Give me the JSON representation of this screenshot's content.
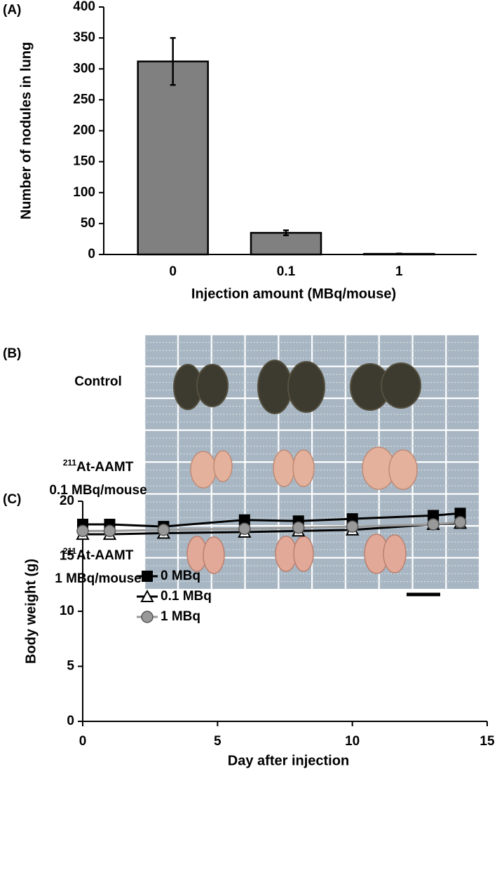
{
  "chart_data": [
    {
      "type": "bar",
      "panel_label": "(A)",
      "ylabel": "Number of nodules in lung",
      "xlabel": "Injection amount (MBq/mouse)",
      "categories": [
        "0",
        "0.1",
        "1"
      ],
      "values": [
        312,
        35,
        1
      ],
      "errors": [
        38,
        4,
        0.5
      ],
      "color": "#808080",
      "ylim": [
        0,
        400
      ],
      "yticks": [
        0,
        50,
        100,
        150,
        200,
        250,
        300,
        350,
        400
      ]
    },
    {
      "type": "line",
      "panel_label": "(C)",
      "ylabel": "Body weight (g)",
      "xlabel": "Day after injection",
      "x": [
        0,
        1,
        3,
        6,
        8,
        10,
        13,
        14
      ],
      "series": [
        {
          "name": "0 MBq",
          "color": "#000000",
          "marker": "square",
          "values": [
            17.9,
            17.9,
            17.7,
            18.3,
            18.2,
            18.4,
            18.7,
            18.9
          ]
        },
        {
          "name": "0.1 MBq",
          "color": "#000000",
          "marker": "triangle",
          "values": [
            17.0,
            17.0,
            17.1,
            17.2,
            17.3,
            17.4,
            17.9,
            18.0
          ]
        },
        {
          "name": "1 MBq",
          "color": "#999999",
          "marker": "circle",
          "values": [
            17.3,
            17.3,
            17.4,
            17.5,
            17.6,
            17.7,
            17.9,
            18.1
          ]
        }
      ],
      "xlim": [
        0,
        15
      ],
      "xticks": [
        0,
        5,
        10,
        15
      ],
      "ylim": [
        0,
        20
      ],
      "yticks": [
        0,
        5,
        10,
        15,
        20
      ],
      "legend": "center left"
    }
  ],
  "photo": {
    "panel_label": "(B)",
    "rows": [
      {
        "name": "Control"
      },
      {
        "isotope": "211",
        "name": "At-AAMT",
        "dose": "0.1 MBq/mouse"
      },
      {
        "isotope": "211",
        "name": "At-AAMT",
        "dose": "1 MBq/mouse"
      }
    ]
  }
}
